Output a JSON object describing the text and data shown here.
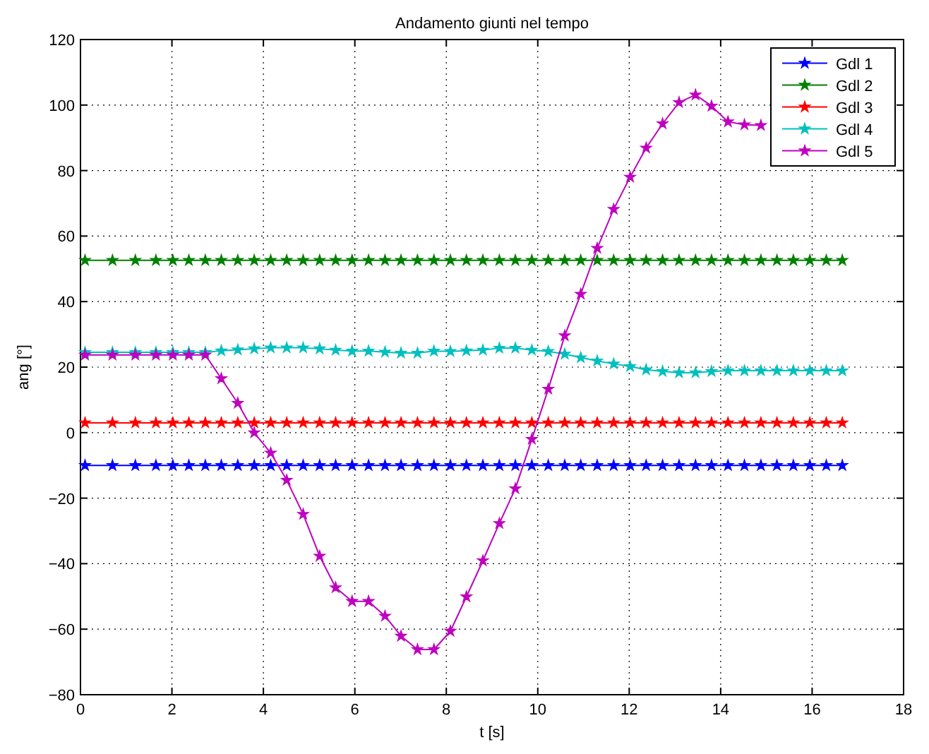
{
  "chart_data": {
    "type": "line",
    "title": "Andamento giunti nel tempo",
    "xlabel": "t [s]",
    "ylabel": "ang [°]",
    "x": [
      0.1,
      0.7,
      1.2,
      1.65,
      2.02,
      2.37,
      2.73,
      3.08,
      3.44,
      3.8,
      4.16,
      4.51,
      4.87,
      5.23,
      5.58,
      5.94,
      6.3,
      6.66,
      7.01,
      7.37,
      7.73,
      8.09,
      8.44,
      8.8,
      9.16,
      9.51,
      9.87,
      10.23,
      10.59,
      10.94,
      11.3,
      11.66,
      12.02,
      12.37,
      12.73,
      13.09,
      13.45,
      13.8,
      14.16,
      14.52,
      14.88,
      15.23,
      15.59,
      15.95,
      16.31,
      16.66
    ],
    "series": [
      {
        "name": "Gdl 1",
        "color": "#0000ff",
        "values": [
          -10,
          -10,
          -10,
          -10,
          -10,
          -10,
          -10,
          -10,
          -10,
          -10,
          -10,
          -10,
          -10,
          -10,
          -10,
          -10,
          -10,
          -10,
          -10,
          -10,
          -10,
          -10,
          -10,
          -10,
          -10,
          -10,
          -10,
          -10,
          -10,
          -10,
          -10,
          -10,
          -10,
          -10,
          -10,
          -10,
          -10,
          -10,
          -10,
          -10,
          -10,
          -10,
          -10,
          -10,
          -10,
          -10
        ]
      },
      {
        "name": "Gdl 2",
        "color": "#008000",
        "values": [
          52.6,
          52.6,
          52.6,
          52.6,
          52.6,
          52.6,
          52.6,
          52.6,
          52.6,
          52.6,
          52.6,
          52.6,
          52.6,
          52.6,
          52.6,
          52.6,
          52.6,
          52.6,
          52.6,
          52.6,
          52.6,
          52.6,
          52.6,
          52.6,
          52.6,
          52.6,
          52.6,
          52.6,
          52.6,
          52.6,
          52.6,
          52.6,
          52.6,
          52.6,
          52.6,
          52.6,
          52.6,
          52.6,
          52.6,
          52.6,
          52.6,
          52.6,
          52.6,
          52.6,
          52.6,
          52.6
        ]
      },
      {
        "name": "Gdl 3",
        "color": "#ff0000",
        "values": [
          3,
          3,
          3,
          3,
          3,
          3,
          3,
          3,
          3,
          3,
          3,
          3,
          3,
          3,
          3,
          3,
          3,
          3,
          3,
          3,
          3,
          3,
          3,
          3,
          3,
          3,
          3,
          3,
          3,
          3,
          3,
          3,
          3,
          3,
          3,
          3,
          3,
          3,
          3,
          3,
          3,
          3,
          3,
          3,
          3,
          3
        ]
      },
      {
        "name": "Gdl 4",
        "color": "#00bfbf",
        "values": [
          24.5,
          24.5,
          24.5,
          24.5,
          24.5,
          24.5,
          24.5,
          25,
          25.3,
          25.6,
          25.9,
          25.9,
          25.9,
          25.6,
          25.2,
          24.9,
          24.9,
          24.6,
          24.3,
          24.3,
          24.9,
          24.8,
          25,
          25.2,
          25.8,
          25.8,
          25.2,
          24.8,
          24,
          22.9,
          21.9,
          21,
          20.2,
          19.2,
          18.7,
          18.3,
          18.3,
          18.7,
          18.9,
          18.9,
          18.9,
          18.9,
          18.9,
          18.9,
          18.9,
          18.9
        ]
      },
      {
        "name": "Gdl 5",
        "color": "#bf00bf",
        "values": [
          23.7,
          23.7,
          23.7,
          23.7,
          23.7,
          23.7,
          23.7,
          16.5,
          9,
          0,
          -6.2,
          -14.5,
          -24.9,
          -37.7,
          -47.3,
          -51.5,
          -51.5,
          -56,
          -62.1,
          -66.2,
          -66.2,
          -60.6,
          -50.1,
          -39.1,
          -27.7,
          -17.1,
          -2,
          13.3,
          29.6,
          42.3,
          56.3,
          68.2,
          78,
          86.9,
          94.3,
          100.8,
          103.1,
          99.7,
          94.9,
          94,
          93.8,
          null,
          null,
          null,
          null,
          null
        ]
      }
    ],
    "xlim": [
      0,
      18
    ],
    "xticks": [
      0,
      2,
      4,
      6,
      8,
      10,
      12,
      14,
      16,
      18
    ],
    "ylim": [
      -80,
      120
    ],
    "yticks": [
      -80,
      -60,
      -40,
      -20,
      0,
      20,
      40,
      60,
      80,
      100,
      120
    ],
    "grid": true,
    "legend": "top right",
    "marker": "star",
    "line_style": "solid"
  }
}
